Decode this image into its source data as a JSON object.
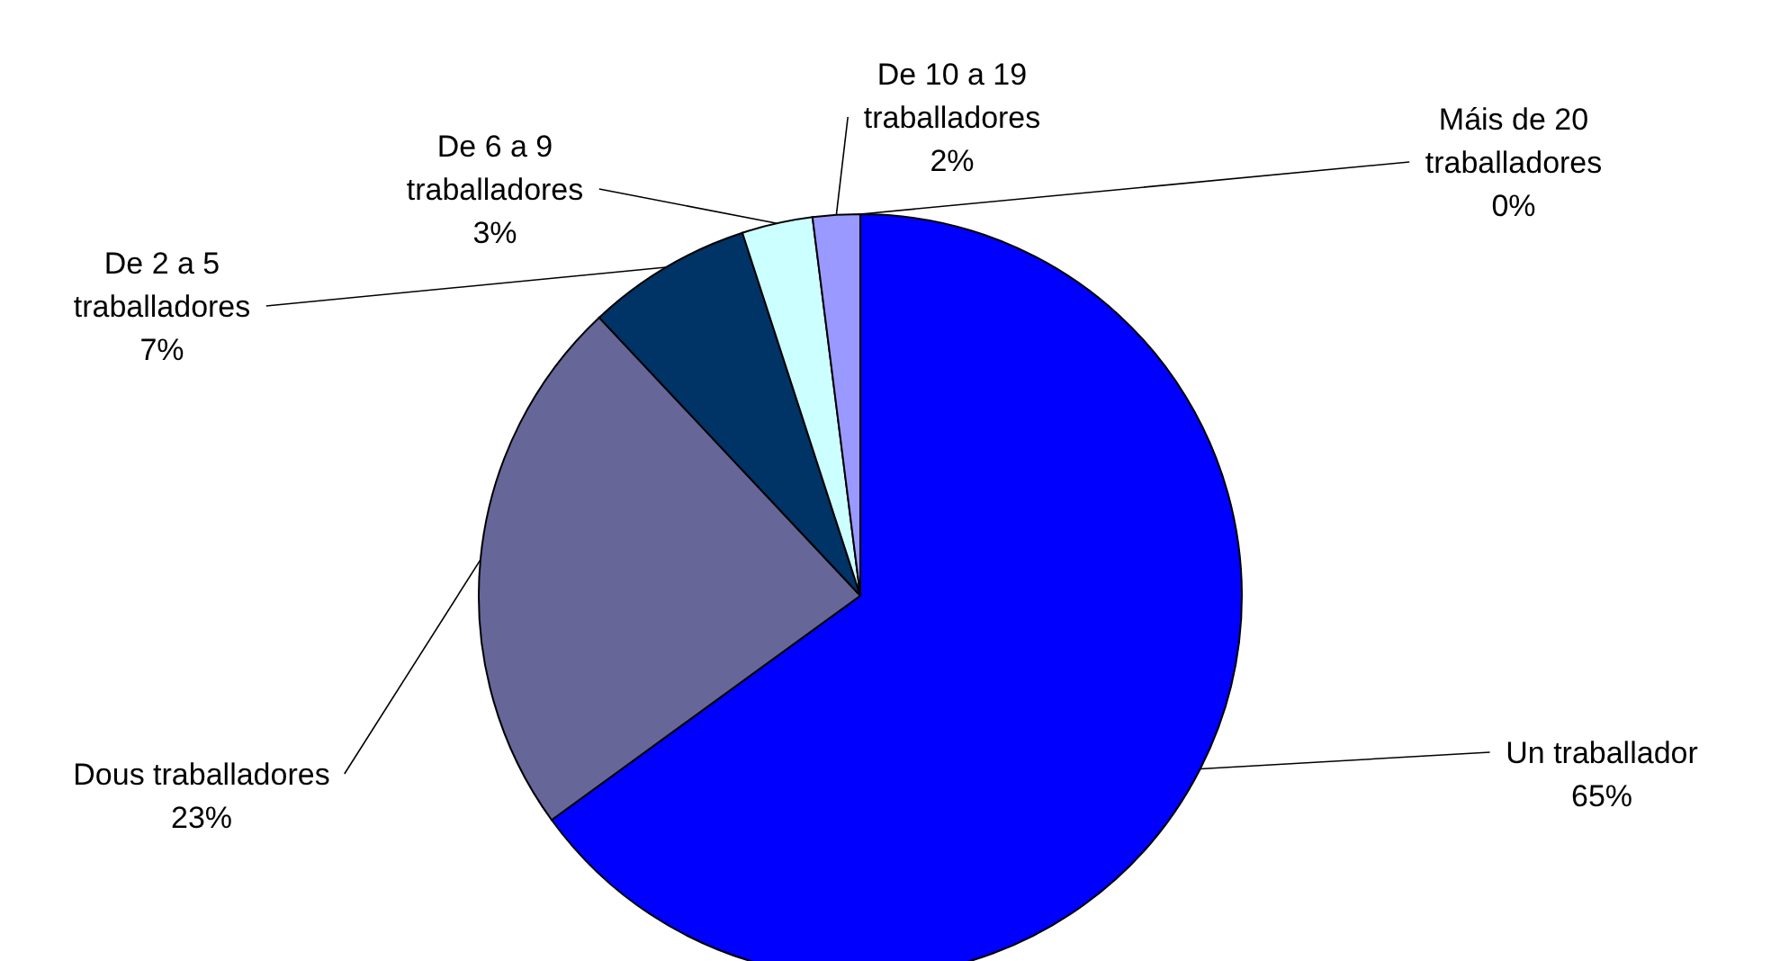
{
  "chart_data": {
    "type": "pie",
    "categories": [
      "Un traballador",
      "Dous traballadores",
      "De 2 a 5 traballadores",
      "De 6 a 9 traballadores",
      "De 10 a 19 traballadores",
      "Máis de 20 traballadores"
    ],
    "values": [
      65,
      23,
      7,
      3,
      2,
      0
    ],
    "colors": [
      "#0000ff",
      "#666699",
      "#003366",
      "#ccffff",
      "#9999ff",
      "#ff6633"
    ],
    "value_labels": [
      "65%",
      "23%",
      "7%",
      "3%",
      "2%",
      "0%"
    ],
    "legend": false
  }
}
